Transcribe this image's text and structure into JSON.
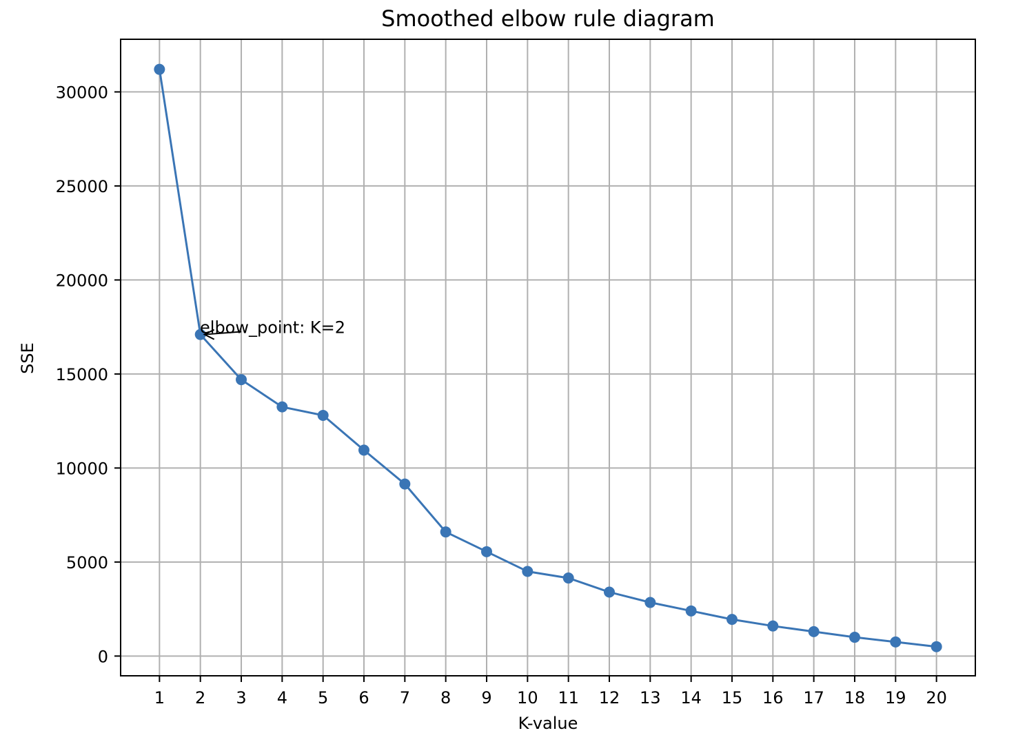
{
  "chart_data": {
    "type": "line",
    "title": "Smoothed elbow rule diagram",
    "xlabel": "K-value",
    "ylabel": "SSE",
    "x": [
      1,
      2,
      3,
      4,
      5,
      6,
      7,
      8,
      9,
      10,
      11,
      12,
      13,
      14,
      15,
      16,
      17,
      18,
      19,
      20
    ],
    "y": [
      31200,
      17100,
      14700,
      13250,
      12800,
      10950,
      9150,
      6600,
      5550,
      4500,
      4150,
      3400,
      2850,
      2400,
      1950,
      1600,
      1300,
      1000,
      750,
      500
    ],
    "xlim": [
      0.05,
      20.95
    ],
    "ylim": [
      -1050,
      32800
    ],
    "xticks": [
      1,
      2,
      3,
      4,
      5,
      6,
      7,
      8,
      9,
      10,
      11,
      12,
      13,
      14,
      15,
      16,
      17,
      18,
      19,
      20
    ],
    "yticks": [
      0,
      5000,
      10000,
      15000,
      20000,
      25000,
      30000
    ],
    "grid": true,
    "line_color": "#3a75b5",
    "annotation": {
      "text": "elbow_point: K=2",
      "x": 2,
      "y": 17100,
      "text_x": 3.0,
      "text_y": 17250
    }
  }
}
